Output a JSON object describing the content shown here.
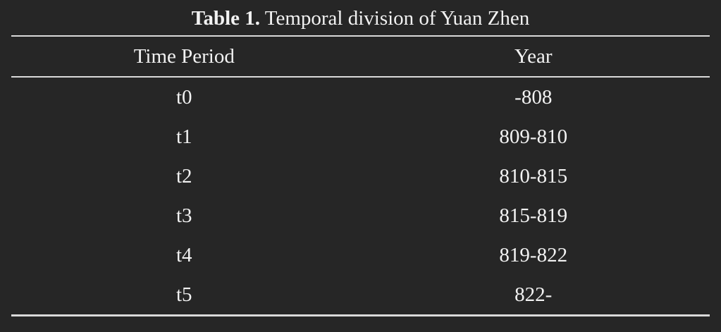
{
  "title": {
    "label": "Table 1.",
    "text": "Temporal division of Yuan Zhen"
  },
  "table": {
    "columns": [
      "Time Period",
      "Year"
    ],
    "rows": [
      {
        "period": "t0",
        "year": "-808"
      },
      {
        "period": "t1",
        "year": "809-810"
      },
      {
        "period": "t2",
        "year": "810-815"
      },
      {
        "period": "t3",
        "year": "815-819"
      },
      {
        "period": "t4",
        "year": "819-822"
      },
      {
        "period": "t5",
        "year": "822-"
      }
    ]
  },
  "colors": {
    "background": "#262626",
    "text": "#f2f2f2",
    "rule": "#d9d9d9"
  }
}
